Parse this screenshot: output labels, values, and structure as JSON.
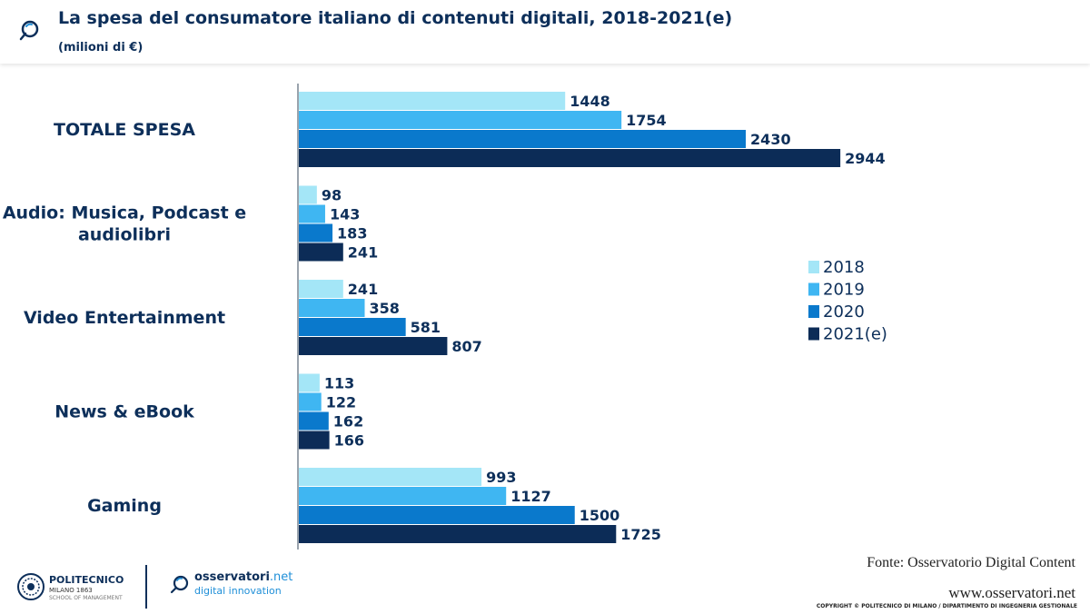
{
  "header": {
    "title": "La spesa del consumatore italiano di contenuti digitali, 2018-2021(e)",
    "subtitle": "(milioni di €)"
  },
  "chart_data": {
    "type": "bar",
    "orientation": "horizontal",
    "title": "La spesa del consumatore italiano di contenuti digitali, 2018-2021(e)",
    "ylabel": "(milioni di €)",
    "categories": [
      "TOTALE SPESA",
      "Audio: Musica, Podcast e audiolibri",
      "Video Entertainment",
      "News & eBook",
      "Gaming"
    ],
    "category_lines": [
      [
        "TOTALE SPESA"
      ],
      [
        "Audio: Musica, Podcast e",
        "audiolibri"
      ],
      [
        "Video Entertainment"
      ],
      [
        "News & eBook"
      ],
      [
        "Gaming"
      ]
    ],
    "series": [
      {
        "name": "2018",
        "color": "#a4e6f7",
        "values": [
          1448,
          98,
          241,
          113,
          993
        ]
      },
      {
        "name": "2019",
        "color": "#3fb6f2",
        "values": [
          1754,
          143,
          358,
          122,
          1127
        ]
      },
      {
        "name": "2020",
        "color": "#0a79cc",
        "values": [
          2430,
          183,
          581,
          162,
          1500
        ]
      },
      {
        "name": "2021(e)",
        "color": "#0c2c57",
        "values": [
          2944,
          241,
          807,
          166,
          1725
        ]
      }
    ],
    "xlim": [
      0,
      3210
    ],
    "legend": "right",
    "grid": false
  },
  "footer": {
    "source": "Fonte: Osservatorio Digital Content",
    "website": "www.osservatori.net",
    "copyright": "COPYRIGHT © POLITECNICO DI MILANO / DIPARTIMENTO DI INGEGNERIA GESTIONALE",
    "polimi_name": "POLITECNICO",
    "polimi_sub1": "MILANO 1863",
    "polimi_sub2": "SCHOOL OF MANAGEMENT",
    "osservatori_name": "osservatori",
    "osservatori_ext": ".net",
    "osservatori_tagline": "digital innovation"
  },
  "colors": {
    "brand_dark": "#0d2f5a",
    "brand_light": "#1f8fd8"
  }
}
